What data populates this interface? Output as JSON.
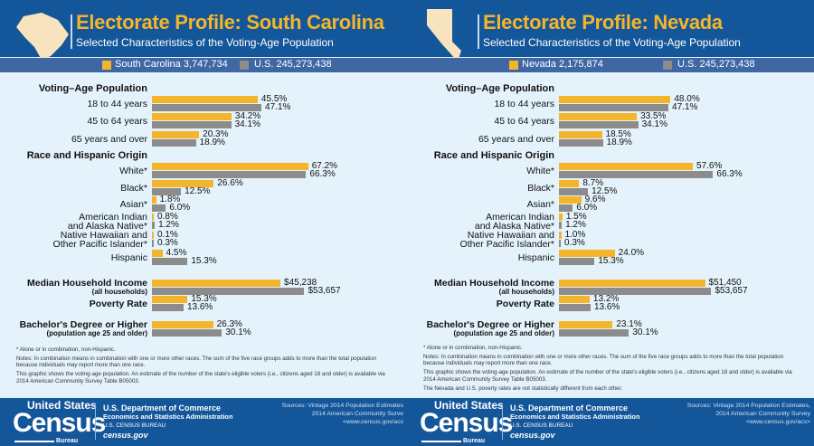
{
  "colors": {
    "state": "#f5b52a",
    "us": "#8c8c8c",
    "header": "#14569a"
  },
  "panels": [
    {
      "title": "Electorate Profile: South Carolina",
      "subtitle": "Selected Characteristics of the Voting-Age Population",
      "legend_state": "South Carolina 3,747,734",
      "legend_us": "U.S. 245,273,438",
      "sections": {
        "vap": "Voting–Age Population",
        "race": "Race and Hispanic Origin"
      },
      "rows": [
        {
          "label": "18 to 44 years",
          "state": 45.5,
          "us": 47.1,
          "state_text": "45.5%",
          "us_text": "47.1%"
        },
        {
          "label": "45 to 64 years",
          "state": 34.2,
          "us": 34.1,
          "state_text": "34.2%",
          "us_text": "34.1%"
        },
        {
          "label": "65 years and over",
          "state": 20.3,
          "us": 18.9,
          "state_text": "20.3%",
          "us_text": "18.9%"
        },
        {
          "label": "White*",
          "state": 67.2,
          "us": 66.3,
          "state_text": "67.2%",
          "us_text": "66.3%"
        },
        {
          "label": "Black*",
          "state": 26.6,
          "us": 12.5,
          "state_text": "26.6%",
          "us_text": "12.5%"
        },
        {
          "label": "Asian*",
          "state": 1.8,
          "us": 6.0,
          "state_text": "1.8%",
          "us_text": "6.0%"
        },
        {
          "label": "American Indian",
          "label2": "and Alaska Native*",
          "state": 0.8,
          "us": 1.2,
          "state_text": "0.8%",
          "us_text": "1.2%"
        },
        {
          "label": "Native Hawaiian and",
          "label2": "Other Pacific Islander*",
          "state": 0.1,
          "us": 0.3,
          "state_text": "0.1%",
          "us_text": "0.3%"
        },
        {
          "label": "Hispanic",
          "state": 4.5,
          "us": 15.3,
          "state_text": "4.5%",
          "us_text": "15.3%"
        },
        {
          "label": "Median Household Income",
          "label2": "(all households)",
          "bold": true,
          "income": true,
          "state": 45238,
          "us": 53657,
          "state_text": "$45,238",
          "us_text": "$53,657"
        },
        {
          "label": "Poverty Rate",
          "bold": true,
          "state": 15.3,
          "us": 13.6,
          "state_text": "15.3%",
          "us_text": "13.6%"
        },
        {
          "label": "Bachelor's Degree or Higher",
          "label2": "(population age 25 and older)",
          "bold": true,
          "state": 26.3,
          "us": 30.1,
          "state_text": "26.3%",
          "us_text": "30.1%"
        }
      ],
      "notes": [
        "* Alone or in combination, non-Hispanic.",
        "Notes: In combination means in combination with one or more other races. The sum of the five race groups adds to more than the total population because individuals may report more than one race.",
        "This graphic shows the voting-age population. An estimate of the number of the state's eligible voters (i.e., citizens aged 18 and older) is available via 2014 American Community Survey Table B05003."
      ],
      "sources": [
        "Sources: Vintage 2014 Population Estimates",
        "2014 American Community Surve",
        "<www.census.gov/acs"
      ]
    },
    {
      "title": "Electorate Profile: Nevada",
      "subtitle": "Selected Characteristics of the Voting-Age Population",
      "legend_state": "Nevada 2,175,874",
      "legend_us": "U.S. 245,273,438",
      "sections": {
        "vap": "Voting–Age Population",
        "race": "Race and Hispanic Origin"
      },
      "rows": [
        {
          "label": "18 to 44 years",
          "state": 48.0,
          "us": 47.1,
          "state_text": "48.0%",
          "us_text": "47.1%"
        },
        {
          "label": "45 to 64 years",
          "state": 33.5,
          "us": 34.1,
          "state_text": "33.5%",
          "us_text": "34.1%"
        },
        {
          "label": "65 years and over",
          "state": 18.5,
          "us": 18.9,
          "state_text": "18.5%",
          "us_text": "18.9%"
        },
        {
          "label": "White*",
          "state": 57.6,
          "us": 66.3,
          "state_text": "57.6%",
          "us_text": "66.3%"
        },
        {
          "label": "Black*",
          "state": 8.7,
          "us": 12.5,
          "state_text": "8.7%",
          "us_text": "12.5%"
        },
        {
          "label": "Asian*",
          "state": 9.6,
          "us": 6.0,
          "state_text": "9.6%",
          "us_text": "6.0%"
        },
        {
          "label": "American Indian",
          "label2": "and Alaska Native*",
          "state": 1.5,
          "us": 1.2,
          "state_text": "1.5%",
          "us_text": "1.2%"
        },
        {
          "label": "Native Hawaiian and",
          "label2": "Other Pacific Islander*",
          "state": 1.0,
          "us": 0.3,
          "state_text": "1.0%",
          "us_text": "0.3%"
        },
        {
          "label": "Hispanic",
          "state": 24.0,
          "us": 15.3,
          "state_text": "24.0%",
          "us_text": "15.3%"
        },
        {
          "label": "Median Household Income",
          "label2": "(all households)",
          "bold": true,
          "income": true,
          "state": 51450,
          "us": 53657,
          "state_text": "$51,450",
          "us_text": "$53,657"
        },
        {
          "label": "Poverty Rate",
          "bold": true,
          "state": 13.2,
          "us": 13.6,
          "state_text": "13.2%",
          "us_text": "13.6%"
        },
        {
          "label": "Bachelor's Degree or Higher",
          "label2": "(population age 25 and older)",
          "bold": true,
          "state": 23.1,
          "us": 30.1,
          "state_text": "23.1%",
          "us_text": "30.1%"
        }
      ],
      "notes": [
        "* Alone or in combination, non-Hispanic.",
        "Notes: In combination means in combination with one or more other races. The sum of the five race groups adds to more than the total population because individuals may report more than one race.",
        "This graphic shows the voting-age population. An estimate of the number of the state's eligible voters (i.e., citizens aged 18 and older) is available via 2014 American Community Survey Table B05003.",
        "The Nevada and U.S. poverty rates are not statistically different from each other."
      ],
      "sources": [
        "Sources: Vintage 2014 Population Estimates,",
        "2014 American Community Survey",
        "<www.census.gov/acs>"
      ]
    }
  ],
  "footer": {
    "us": "United States",
    "census": "Census",
    "bureau": "Bureau",
    "dept": "U.S. Department of Commerce",
    "esa": "Economics and Statistics Administration",
    "cb": "U.S. CENSUS BUREAU",
    "site": "census.gov"
  }
}
